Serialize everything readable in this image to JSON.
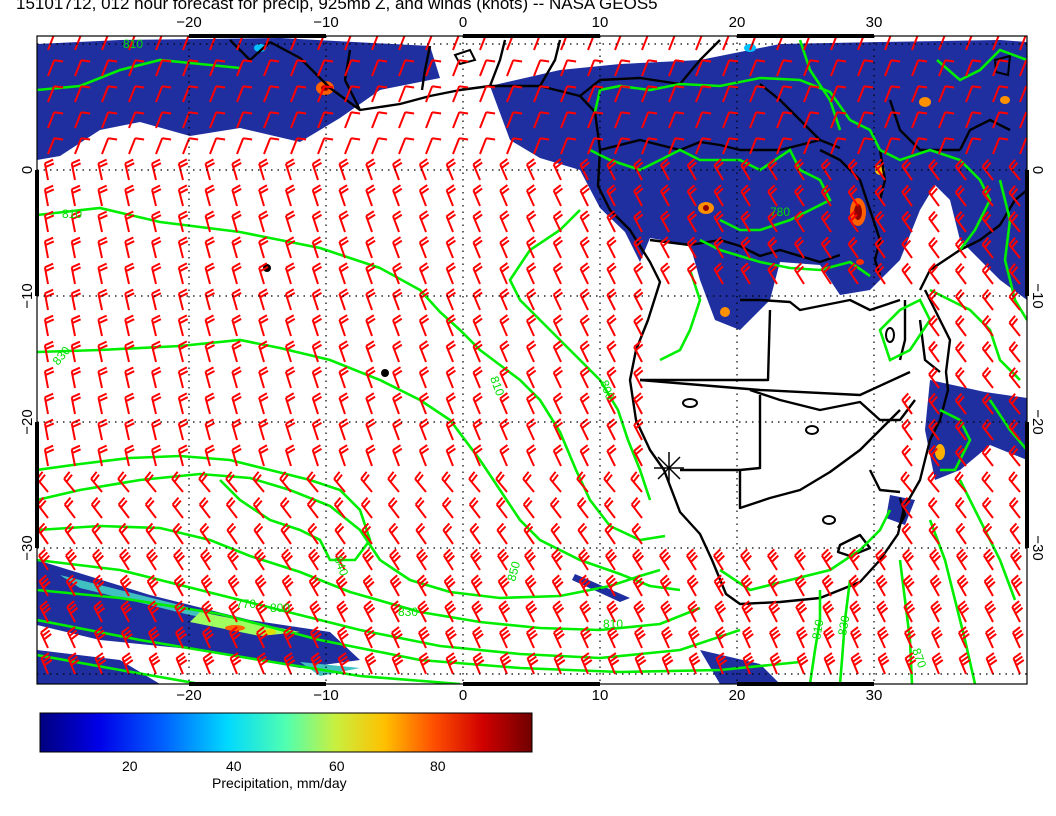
{
  "title": "15101712, 012 hour forecast for precip, 925mb Z, and winds (knots) -- NASA GEOS5",
  "map": {
    "lon_ticks": [
      "−20",
      "−10",
      "0",
      "10",
      "20",
      "30"
    ],
    "lat_ticks": [
      "0",
      "−10",
      "−20",
      "−30"
    ],
    "contour_labels": [
      "810",
      "810",
      "830",
      "810",
      "840",
      "850",
      "770",
      "800",
      "780",
      "830",
      "810",
      "830",
      "810",
      "800",
      "870"
    ],
    "colors": {
      "coast": "#000000",
      "contour": "#00ee00",
      "wind": "#ff0000",
      "precip": "#1f2fa0"
    }
  },
  "colorbar": {
    "ticks": [
      "20",
      "40",
      "60",
      "80"
    ],
    "label": "Precipitation, mm/day",
    "colors": [
      "#00007f",
      "#0000e0",
      "#0060ff",
      "#00d0ff",
      "#40ffc0",
      "#a0ff60",
      "#e0e000",
      "#ff9000",
      "#ff2000",
      "#c00000",
      "#700000"
    ]
  }
}
